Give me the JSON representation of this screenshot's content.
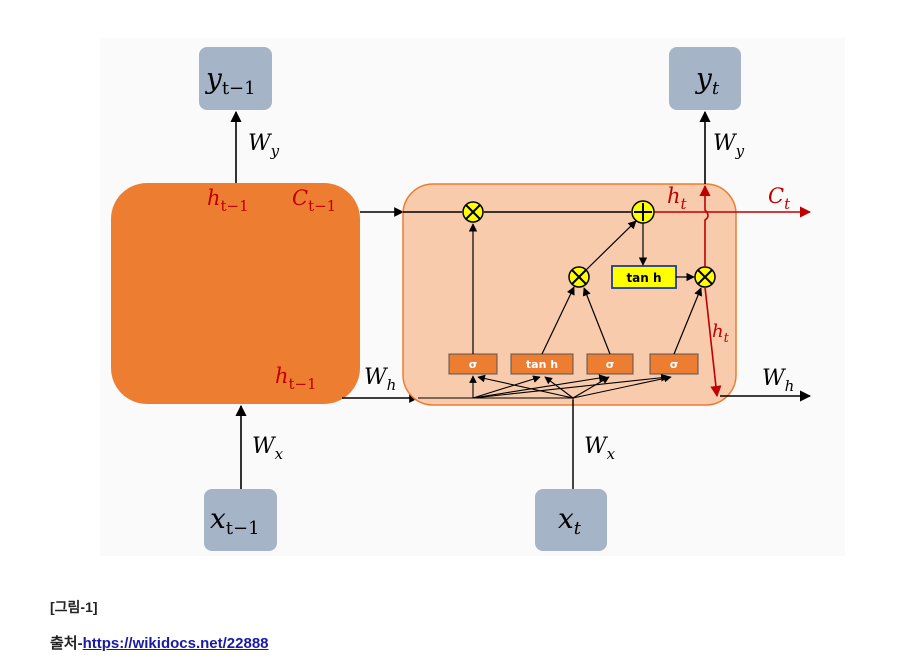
{
  "diagram": {
    "prev": {
      "y": "y",
      "y_sub": "t−1",
      "x": "x",
      "x_sub": "t−1",
      "wy": "W",
      "wy_sub": "y",
      "wx": "W",
      "wx_sub": "x",
      "h_top": "h",
      "h_top_sub": "t−1",
      "c": "C",
      "c_sub": "t−1",
      "h_bottom": "h",
      "h_bottom_sub": "t−1",
      "wh": "W",
      "wh_sub": "h"
    },
    "cur": {
      "y": "y",
      "y_sub": "t",
      "x": "x",
      "x_sub": "t",
      "wy": "W",
      "wy_sub": "y",
      "wx": "W",
      "wx_sub": "x",
      "h_top": "h",
      "h_top_sub": "t",
      "c": "C",
      "c_sub": "t",
      "h_right": "h",
      "h_right_sub": "t",
      "wh": "W",
      "wh_sub": "h"
    },
    "gates": {
      "sigma": "σ",
      "tanh": "tan h"
    },
    "colors": {
      "prev_cell": "#ed7d31",
      "cur_cell": "#f8cbad",
      "gate": "#ed7d31",
      "multiply": "#ffff00",
      "tanh_box": "#ffff00",
      "node": "#a6b4c8",
      "red": "#c00000"
    }
  },
  "caption": "[그림-1]",
  "source": {
    "prefix": "출처-",
    "link": "https://wikidocs.net/22888"
  }
}
